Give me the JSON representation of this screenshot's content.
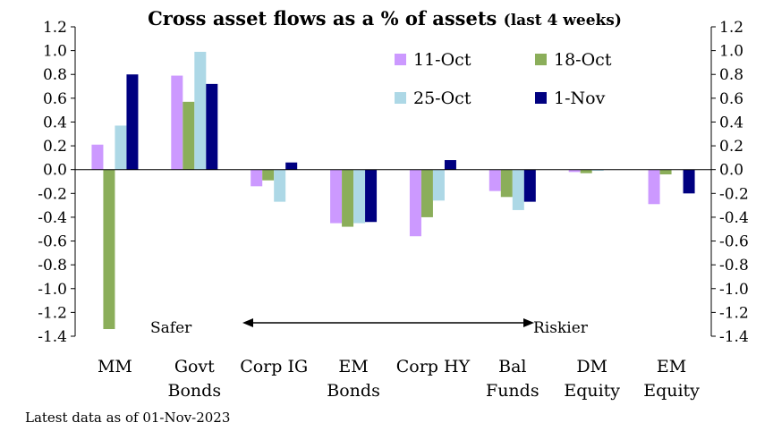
{
  "chart_data": {
    "type": "bar",
    "title": "Cross asset flows as a % of assets",
    "subtitle": "(last 4 weeks)",
    "categories": [
      [
        "MM"
      ],
      [
        "Govt",
        "Bonds"
      ],
      [
        "Corp IG"
      ],
      [
        "EM",
        "Bonds"
      ],
      [
        "Corp HY"
      ],
      [
        "Bal",
        "Funds"
      ],
      [
        "DM",
        "Equity"
      ],
      [
        "EM",
        "Equity"
      ]
    ],
    "series": [
      {
        "name": "11-Oct",
        "color": "#CC99FF",
        "values": [
          0.21,
          0.79,
          -0.14,
          -0.45,
          -0.56,
          -0.18,
          -0.02,
          -0.29
        ]
      },
      {
        "name": "18-Oct",
        "color": "#8BAE5A",
        "values": [
          -1.34,
          0.57,
          -0.09,
          -0.48,
          -0.4,
          -0.23,
          -0.03,
          -0.04
        ]
      },
      {
        "name": "25-Oct",
        "color": "#ADD8E6",
        "values": [
          0.37,
          0.99,
          -0.27,
          -0.45,
          -0.26,
          -0.34,
          -0.01,
          0.0
        ]
      },
      {
        "name": "1-Nov",
        "color": "#000080",
        "values": [
          0.8,
          0.72,
          0.06,
          -0.44,
          0.08,
          -0.27,
          0.0,
          -0.2
        ]
      }
    ],
    "ylim": [
      -1.4,
      1.2
    ],
    "yticks": [
      "1.2",
      "1.0",
      "0.8",
      "0.6",
      "0.4",
      "0.2",
      "0.0",
      "-0.2",
      "-0.4",
      "-0.6",
      "-0.8",
      "-1.0",
      "-1.2",
      "-1.4"
    ],
    "ytick_values": [
      1.2,
      1.0,
      0.8,
      0.6,
      0.4,
      0.2,
      0.0,
      -0.2,
      -0.4,
      -0.6,
      -0.8,
      -1.0,
      -1.2,
      -1.4
    ],
    "annotations": {
      "left": "Safer",
      "right": "Riskier"
    },
    "note": "Latest data as of 01-Nov-2023",
    "legend": "top-right"
  }
}
